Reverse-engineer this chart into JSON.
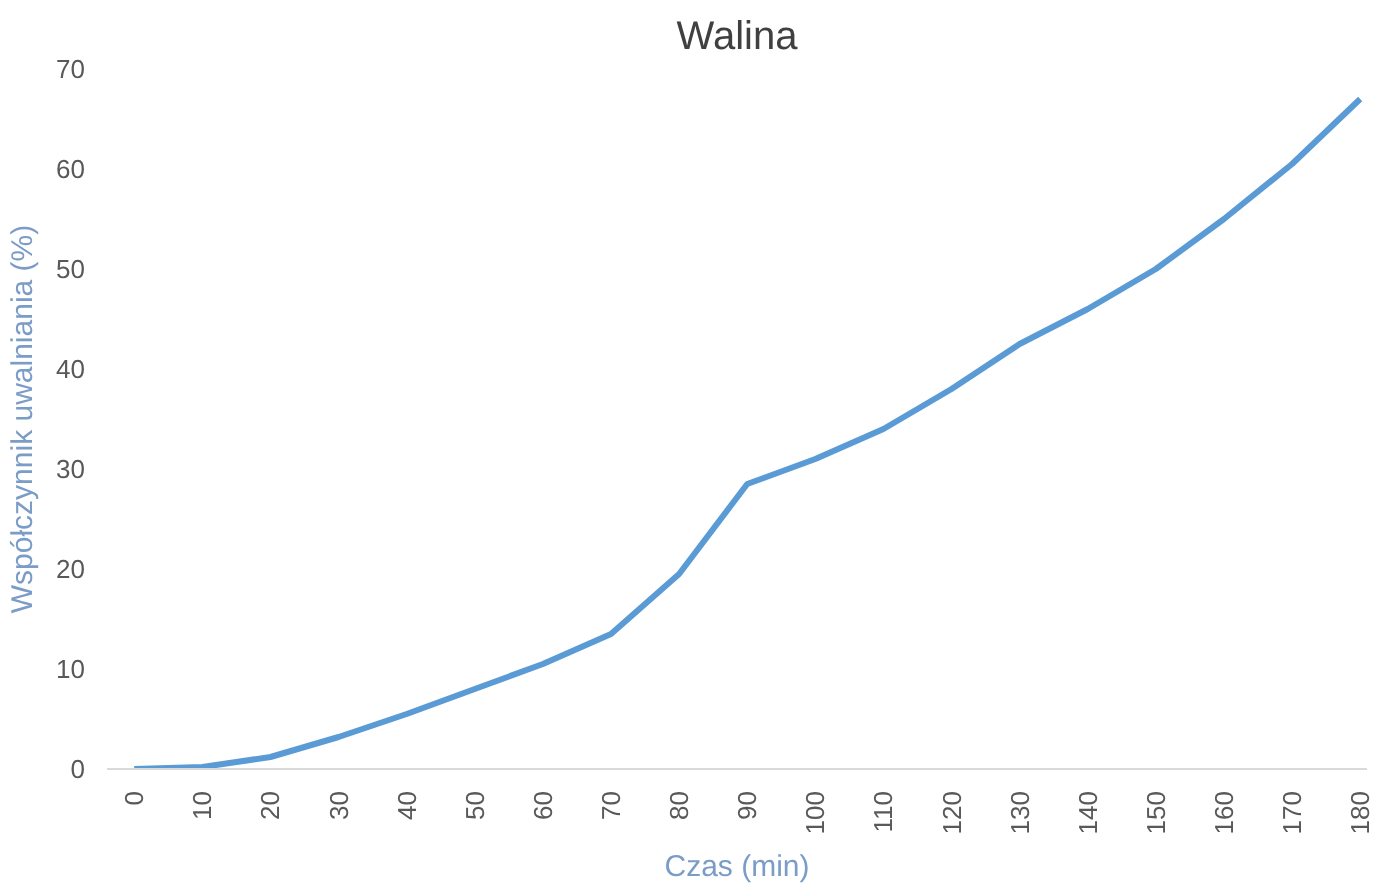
{
  "chart_data": {
    "type": "line",
    "title": "Walina",
    "xlabel": "Czas (min)",
    "ylabel": "Współczynnik uwalniania (%)",
    "categories": [
      "0",
      "10",
      "20",
      "30",
      "40",
      "50",
      "60",
      "70",
      "80",
      "90",
      "100",
      "110",
      "120",
      "130",
      "140",
      "150",
      "160",
      "170",
      "180"
    ],
    "series": [
      {
        "color": "#5b9bd5",
        "values": [
          0,
          0.2,
          1.2,
          3.2,
          5.5,
          8,
          10.5,
          13.5,
          19.5,
          28.5,
          31,
          34,
          38,
          42.5,
          46,
          50,
          55,
          60.5,
          67
        ]
      }
    ],
    "ylim": [
      0,
      70
    ],
    "yticks": [
      0,
      10,
      20,
      30,
      40,
      50,
      60,
      70
    ],
    "grid": false,
    "marker": "none",
    "line_style": "solid"
  }
}
